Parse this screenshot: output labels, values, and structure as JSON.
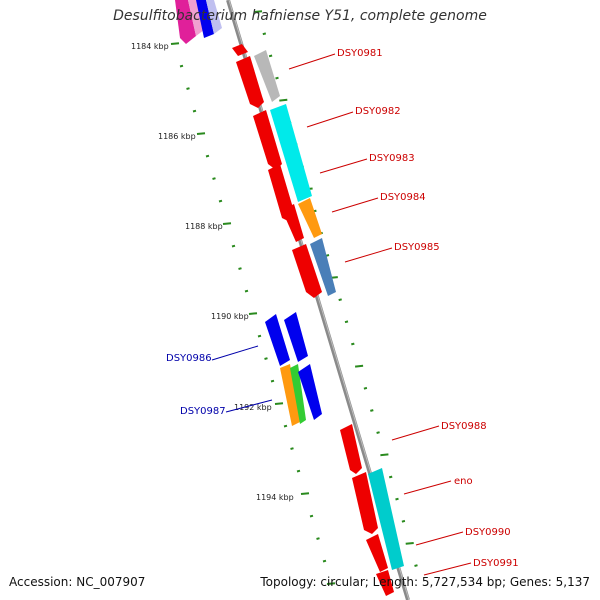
{
  "title": "Desulfitobacterium hafniense Y51, complete genome",
  "footer": {
    "accession": "Accession: NC_007907",
    "summary": "Topology: circular; Length: 5,727,534 bp; Genes: 5,137"
  },
  "colors": {
    "tick": "#2a8a1e",
    "gene_label_forward": "#cc0000",
    "gene_label_reverse": "#0000aa",
    "backbone": "#8a8a8a"
  },
  "scale_labels": [
    "1184 kbp",
    "1186 kbp",
    "1188 kbp",
    "1190 kbp",
    "1192 kbp",
    "1194 kbp"
  ],
  "gene_labels_right": [
    "DSY0981",
    "DSY0982",
    "DSY0983",
    "DSY0984",
    "DSY0985",
    "DSY0988",
    "eno",
    "DSY0990",
    "DSY0991"
  ],
  "gene_labels_left": [
    "DSY0986",
    "DSY0987"
  ]
}
